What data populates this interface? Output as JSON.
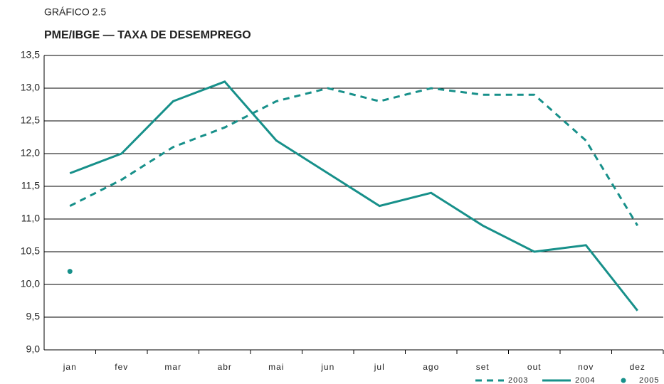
{
  "chart_data": {
    "type": "line",
    "label": "GRÁFICO 2.5",
    "title": "PME/IBGE — TAXA DE DESEMPREGO",
    "categories": [
      "jan",
      "fev",
      "mar",
      "abr",
      "mai",
      "jun",
      "jul",
      "ago",
      "set",
      "out",
      "nov",
      "dez"
    ],
    "series": [
      {
        "name": "2003",
        "color": "#17908a",
        "style": "dashed",
        "values": [
          11.2,
          11.6,
          12.1,
          12.4,
          12.8,
          13.0,
          12.8,
          13.0,
          12.9,
          12.9,
          12.2,
          10.9
        ]
      },
      {
        "name": "2004",
        "color": "#17908a",
        "style": "solid",
        "values": [
          11.7,
          12.0,
          12.8,
          13.1,
          12.2,
          11.7,
          11.2,
          11.4,
          10.9,
          10.5,
          10.6,
          9.6
        ]
      },
      {
        "name": "2005",
        "color": "#17908a",
        "style": "dot",
        "values": [
          10.2,
          null,
          null,
          null,
          null,
          null,
          null,
          null,
          null,
          null,
          null,
          null
        ]
      }
    ],
    "ylim": [
      9.0,
      13.5
    ],
    "yticks": [
      {
        "value": 9.0,
        "label": "9,0"
      },
      {
        "value": 9.5,
        "label": "9,5"
      },
      {
        "value": 10.0,
        "label": "10,0"
      },
      {
        "value": 10.5,
        "label": "10,5"
      },
      {
        "value": 11.0,
        "label": "11,0"
      },
      {
        "value": 11.5,
        "label": "11,5"
      },
      {
        "value": 12.0,
        "label": "12,0"
      },
      {
        "value": 12.5,
        "label": "12,5"
      },
      {
        "value": 13.0,
        "label": "13,0"
      },
      {
        "value": 13.5,
        "label": "13,5"
      }
    ],
    "grid": true
  }
}
